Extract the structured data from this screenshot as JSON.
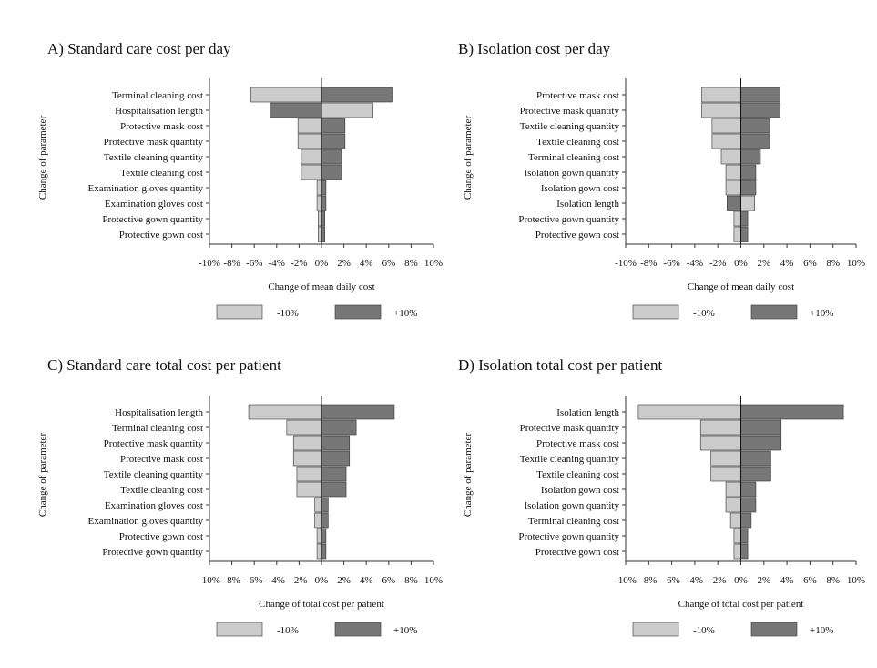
{
  "colors": {
    "minus": "#cccccc",
    "plus": "#777777",
    "axis": "#333333",
    "bar_stroke": "#333333"
  },
  "legend": {
    "minus_label": "-10%",
    "plus_label": "+10%"
  },
  "y_axis_title": "Change of parameter",
  "chart_data": [
    {
      "type": "bar",
      "orientation": "horizontal",
      "title": "A) Standard care cost per day",
      "xlabel": "Change of mean daily cost",
      "ylabel": "Change of parameter",
      "xlim": [
        -10,
        10
      ],
      "xticks": [
        -10,
        -8,
        -6,
        -4,
        -2,
        0,
        2,
        4,
        6,
        8,
        10
      ],
      "xtick_labels": [
        "-10%",
        "-8%",
        "-6%",
        "-4%",
        "-2%",
        "0%",
        "2%",
        "4%",
        "6%",
        "8%",
        "10%"
      ],
      "categories": [
        "Terminal cleaning cost",
        "Hospitalisation length",
        "Protective mask cost",
        "Protective mask quantity",
        "Textile cleaning quantity",
        "Textile cleaning cost",
        "Examination gloves quantity",
        "Examination gloves cost",
        "Protective gown quantity",
        "Protective gown cost"
      ],
      "series": [
        {
          "name": "-10%",
          "values": [
            -6.3,
            4.6,
            -2.1,
            -2.1,
            -1.8,
            -1.8,
            -0.4,
            -0.4,
            -0.3,
            -0.3
          ]
        },
        {
          "name": "+10%",
          "values": [
            6.3,
            -4.6,
            2.1,
            2.1,
            1.8,
            1.8,
            0.4,
            0.4,
            0.3,
            0.3
          ]
        }
      ],
      "legend_position": "bottom"
    },
    {
      "type": "bar",
      "orientation": "horizontal",
      "title": "B) Isolation cost per day",
      "xlabel": "Change of mean daily cost",
      "ylabel": "Change of parameter",
      "xlim": [
        -10,
        10
      ],
      "xticks": [
        -10,
        -8,
        -6,
        -4,
        -2,
        0,
        2,
        4,
        6,
        8,
        10
      ],
      "xtick_labels": [
        "-10%",
        "-8%",
        "-6%",
        "-4%",
        "-2%",
        "0%",
        "2%",
        "4%",
        "6%",
        "8%",
        "10%"
      ],
      "categories": [
        "Protective mask cost",
        "Protective mask quantity",
        "Textile cleaning quantity",
        "Textile cleaning cost",
        "Terminal cleaning cost",
        "Isolation gown quantity",
        "Isolation gown cost",
        "Isolation length",
        "Protective gown quantity",
        "Protective gown cost"
      ],
      "series": [
        {
          "name": "-10%",
          "values": [
            -3.4,
            -3.4,
            -2.5,
            -2.5,
            -1.7,
            -1.3,
            -1.3,
            1.2,
            -0.6,
            -0.6
          ]
        },
        {
          "name": "+10%",
          "values": [
            3.4,
            3.4,
            2.5,
            2.5,
            1.7,
            1.3,
            1.3,
            -1.2,
            0.6,
            0.6
          ]
        }
      ],
      "legend_position": "bottom"
    },
    {
      "type": "bar",
      "orientation": "horizontal",
      "title": "C) Standard care total cost per patient",
      "xlabel": "Change of total cost per patient",
      "ylabel": "Change of parameter",
      "xlim": [
        -10,
        10
      ],
      "xticks": [
        -10,
        -8,
        -6,
        -4,
        -2,
        0,
        2,
        4,
        6,
        8,
        10
      ],
      "xtick_labels": [
        "-10%",
        "-8%",
        "-6%",
        "-4%",
        "-2%",
        "0%",
        "2%",
        "4%",
        "6%",
        "8%",
        "10%"
      ],
      "categories": [
        "Hospitalisation length",
        "Terminal cleaning cost",
        "Protective mask quantity",
        "Protective mask cost",
        "Textile cleaning quantity",
        "Textile cleaning cost",
        "Examination gloves cost",
        "Examination gloves quantity",
        "Protective gown cost",
        "Protective gown quantity"
      ],
      "series": [
        {
          "name": "-10%",
          "values": [
            -6.5,
            -3.1,
            -2.5,
            -2.5,
            -2.2,
            -2.2,
            -0.6,
            -0.6,
            -0.4,
            -0.4
          ]
        },
        {
          "name": "+10%",
          "values": [
            6.5,
            3.1,
            2.5,
            2.5,
            2.2,
            2.2,
            0.6,
            0.6,
            0.4,
            0.4
          ]
        }
      ],
      "legend_position": "bottom"
    },
    {
      "type": "bar",
      "orientation": "horizontal",
      "title": "D) Isolation total cost per patient",
      "xlabel": "Change of total cost per patient",
      "ylabel": "Change of parameter",
      "xlim": [
        -10,
        10
      ],
      "xticks": [
        -10,
        -8,
        -6,
        -4,
        -2,
        0,
        2,
        4,
        6,
        8,
        10
      ],
      "xtick_labels": [
        "-10%",
        "-8%",
        "-6%",
        "-4%",
        "-2%",
        "0%",
        "2%",
        "4%",
        "6%",
        "8%",
        "10%"
      ],
      "categories": [
        "Isolation length",
        "Protective mask quantity",
        "Protective mask cost",
        "Textile cleaning quantity",
        "Textile cleaning cost",
        "Isolation gown cost",
        "Isolation gown quantity",
        "Terminal cleaning cost",
        "Protective gown quantity",
        "Protective gown cost"
      ],
      "series": [
        {
          "name": "-10%",
          "values": [
            -8.9,
            -3.5,
            -3.5,
            -2.6,
            -2.6,
            -1.3,
            -1.3,
            -0.9,
            -0.6,
            -0.6
          ]
        },
        {
          "name": "+10%",
          "values": [
            8.9,
            3.5,
            3.5,
            2.6,
            2.6,
            1.3,
            1.3,
            0.9,
            0.6,
            0.6
          ]
        }
      ],
      "legend_position": "bottom"
    }
  ]
}
